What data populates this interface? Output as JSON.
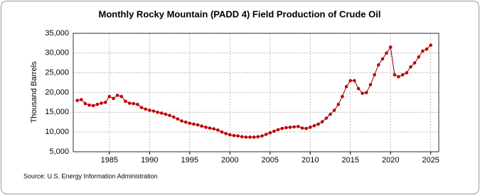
{
  "chart_data": {
    "type": "line",
    "title": "Monthly Rocky Mountain (PADD 4) Field Production of Crude Oil",
    "y_label": "Thousand Barrels",
    "source": "Source: U.S. Energy Information Administration",
    "xlim": [
      1980.5,
      2026
    ],
    "xticks": [
      1985,
      1990,
      1995,
      2000,
      2005,
      2010,
      2015,
      2020,
      2025
    ],
    "ylim": [
      5000,
      35000
    ],
    "yticks": [
      {
        "value": 5000,
        "label": "5,000"
      },
      {
        "value": 10000,
        "label": "10,000"
      },
      {
        "value": 15000,
        "label": "15,000"
      },
      {
        "value": 20000,
        "label": "20,000"
      },
      {
        "value": 25000,
        "label": "25,000"
      },
      {
        "value": 30000,
        "label": "30,000"
      },
      {
        "value": 35000,
        "label": "35,000"
      }
    ],
    "grid": true,
    "x": [
      1981,
      1981.5,
      1982,
      1982.5,
      1983,
      1983.5,
      1984,
      1984.5,
      1985,
      1985.5,
      1986,
      1986.5,
      1987,
      1987.5,
      1988,
      1988.5,
      1989,
      1989.5,
      1990,
      1990.5,
      1991,
      1991.5,
      1992,
      1992.5,
      1993,
      1993.5,
      1994,
      1994.5,
      1995,
      1995.5,
      1996,
      1996.5,
      1997,
      1997.5,
      1998,
      1998.5,
      1999,
      1999.5,
      2000,
      2000.5,
      2001,
      2001.5,
      2002,
      2002.5,
      2003,
      2003.5,
      2004,
      2004.5,
      2005,
      2005.5,
      2006,
      2006.5,
      2007,
      2007.5,
      2008,
      2008.5,
      2009,
      2009.5,
      2010,
      2010.5,
      2011,
      2011.5,
      2012,
      2012.5,
      2013,
      2013.5,
      2014,
      2014.5,
      2015,
      2015.5,
      2016,
      2016.5,
      2017,
      2017.5,
      2018,
      2018.5,
      2019,
      2019.5,
      2020,
      2020.5,
      2021,
      2021.5,
      2022,
      2022.5,
      2023,
      2023.5,
      2024,
      2024.5,
      2025
    ],
    "series": [
      {
        "color": "#c00000",
        "values": [
          18000,
          18200,
          17200,
          16800,
          16700,
          17000,
          17300,
          17500,
          19000,
          18500,
          19300,
          19000,
          17800,
          17300,
          17200,
          17000,
          16200,
          15800,
          15500,
          15300,
          15000,
          14800,
          14500,
          14200,
          13800,
          13300,
          12800,
          12500,
          12200,
          12000,
          11800,
          11500,
          11200,
          11000,
          10800,
          10500,
          10000,
          9600,
          9300,
          9100,
          9000,
          8800,
          8700,
          8700,
          8700,
          8800,
          9000,
          9400,
          9800,
          10200,
          10600,
          10900,
          11100,
          11200,
          11300,
          11400,
          11000,
          10900,
          11200,
          11600,
          12000,
          12600,
          13500,
          14500,
          15500,
          17000,
          19000,
          21500,
          23000,
          23000,
          21000,
          19800,
          20000,
          22000,
          24500,
          27000,
          28500,
          30000,
          31500,
          24500,
          24000,
          24500,
          25000,
          26500,
          27500,
          29000,
          30500,
          31000,
          32000
        ]
      }
    ]
  }
}
